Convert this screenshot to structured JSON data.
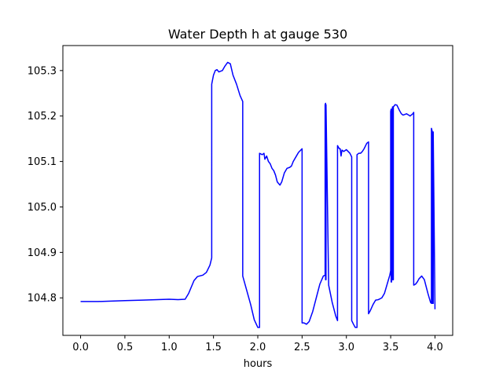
{
  "chart_data": {
    "type": "line",
    "title": "Water Depth h at gauge 530",
    "xlabel": "hours",
    "ylabel": "",
    "xlim": [
      -0.2,
      4.2
    ],
    "ylim": [
      104.7175,
      105.355
    ],
    "grid": false,
    "xticks": [
      0.0,
      0.5,
      1.0,
      1.5,
      2.0,
      2.5,
      3.0,
      3.5,
      4.0
    ],
    "xtick_labels": [
      "0.0",
      "0.5",
      "1.0",
      "1.5",
      "2.0",
      "2.5",
      "3.0",
      "3.5",
      "4.0"
    ],
    "yticks": [
      104.8,
      104.9,
      105.0,
      105.1,
      105.2,
      105.3
    ],
    "ytick_labels": [
      "104.8",
      "104.9",
      "105.0",
      "105.1",
      "105.2",
      "105.3"
    ],
    "series": [
      {
        "color": "#0000ff",
        "x": [
          0.0,
          0.2,
          0.5,
          0.7,
          1.0,
          1.1,
          1.18,
          1.22,
          1.28,
          1.32,
          1.38,
          1.42,
          1.46,
          1.48,
          1.48,
          1.5,
          1.52,
          1.54,
          1.56,
          1.6,
          1.63,
          1.66,
          1.69,
          1.72,
          1.76,
          1.8,
          1.83,
          1.83,
          1.87,
          1.92,
          1.96,
          2.0,
          2.02,
          2.02,
          2.05,
          2.07,
          2.08,
          2.1,
          2.12,
          2.14,
          2.16,
          2.18,
          2.2,
          2.22,
          2.25,
          2.27,
          2.3,
          2.33,
          2.36,
          2.38,
          2.4,
          2.43,
          2.46,
          2.5,
          2.5,
          2.52,
          2.55,
          2.58,
          2.62,
          2.66,
          2.7,
          2.74,
          2.76,
          2.76,
          2.765,
          2.765,
          2.77,
          2.77,
          2.8,
          2.84,
          2.88,
          2.9,
          2.9,
          2.92,
          2.93,
          2.94,
          2.95,
          2.97,
          3.0,
          3.04,
          3.06,
          3.06,
          3.08,
          3.1,
          3.12,
          3.12,
          3.14,
          3.16,
          3.18,
          3.2,
          3.23,
          3.25,
          3.25,
          3.27,
          3.3,
          3.33,
          3.36,
          3.4,
          3.43,
          3.46,
          3.49,
          3.5,
          3.5,
          3.505,
          3.505,
          3.51,
          3.51,
          3.515,
          3.515,
          3.52,
          3.52,
          3.525,
          3.525,
          3.53,
          3.53,
          3.55,
          3.57,
          3.6,
          3.62,
          3.64,
          3.68,
          3.72,
          3.75,
          3.76,
          3.76,
          3.78,
          3.8,
          3.82,
          3.85,
          3.88,
          3.9,
          3.92,
          3.95,
          3.96,
          3.96,
          3.97,
          3.97,
          3.98,
          3.98,
          4.0
        ],
        "y": [
          104.792,
          104.792,
          104.794,
          104.795,
          104.797,
          104.796,
          104.797,
          104.81,
          104.838,
          104.847,
          104.85,
          104.856,
          104.872,
          104.888,
          105.27,
          105.29,
          105.3,
          105.302,
          105.297,
          105.3,
          105.31,
          105.318,
          105.315,
          105.29,
          105.27,
          105.245,
          105.232,
          104.848,
          104.82,
          104.785,
          104.752,
          104.735,
          104.735,
          105.118,
          105.115,
          105.118,
          105.105,
          105.112,
          105.1,
          105.095,
          105.085,
          105.08,
          105.07,
          105.055,
          105.048,
          105.055,
          105.075,
          105.085,
          105.087,
          105.09,
          105.1,
          105.11,
          105.12,
          105.128,
          104.745,
          104.745,
          104.742,
          104.748,
          104.77,
          104.8,
          104.83,
          104.848,
          104.85,
          105.225,
          105.228,
          104.84,
          104.84,
          105.225,
          104.828,
          104.79,
          104.76,
          104.75,
          105.135,
          105.128,
          105.128,
          105.112,
          105.125,
          105.122,
          105.126,
          105.118,
          105.11,
          104.75,
          104.742,
          104.735,
          104.735,
          105.115,
          105.118,
          105.118,
          105.122,
          105.128,
          105.14,
          105.143,
          104.765,
          104.772,
          104.785,
          104.795,
          104.796,
          104.8,
          104.81,
          104.83,
          104.85,
          104.86,
          105.21,
          105.215,
          104.835,
          104.835,
          105.215,
          105.215,
          104.84,
          104.84,
          105.22,
          105.22,
          104.84,
          104.84,
          105.22,
          105.225,
          105.224,
          105.212,
          105.205,
          105.202,
          105.205,
          105.2,
          105.205,
          105.208,
          104.828,
          104.83,
          104.835,
          104.842,
          104.848,
          104.84,
          104.825,
          104.81,
          104.79,
          104.788,
          105.173,
          105.165,
          104.788,
          104.788,
          105.165,
          104.775
        ]
      }
    ]
  }
}
